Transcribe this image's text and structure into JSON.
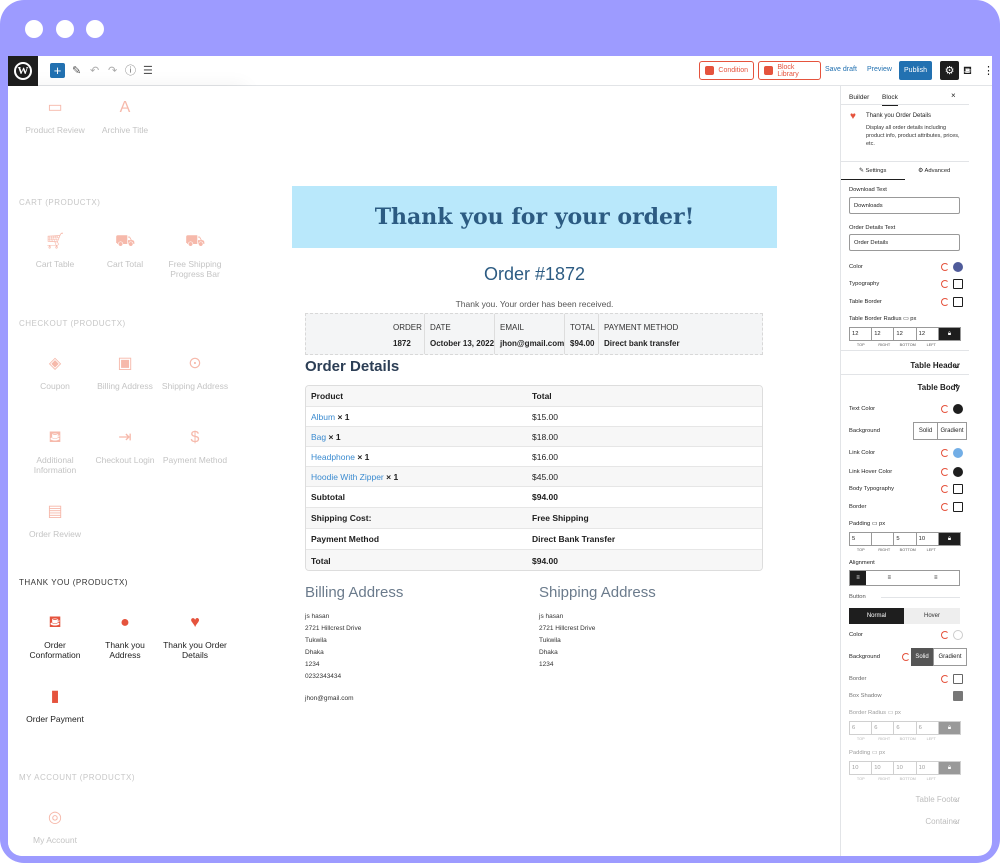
{
  "toolbar": {
    "condition": "Condition",
    "block_library": "Block Library",
    "save_draft": "Save draft",
    "preview": "Preview",
    "publish": "Publish"
  },
  "left": {
    "row0": [
      "Product Review",
      "Archive Title"
    ],
    "cart_heading": "CART (PRODUCTX)",
    "cart": [
      "Cart Table",
      "Cart Total",
      "Free Shipping Progress Bar"
    ],
    "checkout_heading": "CHECKOUT (PRODUCTX)",
    "checkout": [
      "Coupon",
      "Billing Address",
      "Shipping Address",
      "Additional Information",
      "Checkout Login",
      "Payment Method",
      "Order Review"
    ],
    "thankyou_heading": "THANK YOU (PRODUCTX)",
    "thankyou": [
      "Order Conformation",
      "Thank you Address",
      "Thank you Order Details",
      "Order Payment"
    ],
    "account_heading": "MY ACCOUNT (PRODUCTX)",
    "account": [
      "My Account"
    ]
  },
  "canvas": {
    "banner": "Thank you for your order!",
    "order_number": "Order #1872",
    "received": "Thank you. Your order has been received.",
    "summary": [
      {
        "h": "ORDER",
        "v": "1872"
      },
      {
        "h": "DATE",
        "v": "October 13, 2022"
      },
      {
        "h": "EMAIL",
        "v": "jhon@gmail.com"
      },
      {
        "h": "TOTAL",
        "v": "$94.00"
      },
      {
        "h": "PAYMENT METHOD",
        "v": "Direct bank transfer"
      }
    ],
    "details_heading": "Order Details",
    "table_head": [
      "Product",
      "Total"
    ],
    "items": [
      {
        "name": "Album",
        "qty": "× 1",
        "total": "$15.00"
      },
      {
        "name": "Bag",
        "qty": "× 1",
        "total": "$18.00"
      },
      {
        "name": "Headphone",
        "qty": "× 1",
        "total": "$16.00"
      },
      {
        "name": "Hoodie With Zipper",
        "qty": "× 1",
        "total": "$45.00"
      }
    ],
    "totals": [
      {
        "label": "Subtotal",
        "value": "$94.00"
      },
      {
        "label": "Shipping Cost:",
        "value": "Free Shipping"
      },
      {
        "label": "Payment Method",
        "value": "Direct Bank Transfer"
      },
      {
        "label": "Total",
        "value": "$94.00"
      }
    ],
    "billing_heading": "Billing Address",
    "billing": [
      "js hasan",
      "2721 Hillcrest Drive",
      "Tukwila",
      "Dhaka",
      "1234",
      "0232343434",
      "jhon@gmail.com"
    ],
    "shipping_heading": "Shipping Address",
    "shipping": [
      "js hasan",
      "2721 Hillcrest Drive",
      "Tukwila",
      "Dhaka",
      "1234"
    ]
  },
  "sidebar": {
    "tab_builder": "Builder",
    "tab_block": "Block",
    "close": "×",
    "block_title": "Thank you Order Details",
    "block_desc": "Display all order details including product info, product attributes, prices, etc.",
    "tab_settings": "Settings",
    "tab_advanced": "Advanced",
    "download_label": "Download Text",
    "download_value": "Downloads",
    "details_label": "Order Details Text",
    "details_value": "Order Details",
    "color": "Color",
    "typography": "Typography",
    "table_border": "Table Border",
    "radius_label": "Table Border Radius",
    "px": "px",
    "radius_values": [
      "12",
      "12",
      "12",
      "12"
    ],
    "sides": [
      "TOP",
      "RIGHT",
      "BOTTOM",
      "LEFT"
    ],
    "table_header": "Table Header",
    "table_body": "Table Body",
    "text_color": "Text Color",
    "background": "Background",
    "solid": "Solid",
    "gradient": "Gradient",
    "link_color": "Link Color",
    "link_hover": "Link Hover Color",
    "body_typo": "Body Typography",
    "border": "Border",
    "padding": "Padding",
    "padding_values": [
      "5",
      "",
      "5",
      "10"
    ],
    "alignment": "Alignment",
    "button": "Button",
    "normal": "Normal",
    "hover": "Hover",
    "btn_color": "Color",
    "btn_background": "Background",
    "btn_border": "Border",
    "box_shadow": "Box Shadow",
    "btn_radius": "Border Radius",
    "btn_radius_values": [
      "6",
      "6",
      "6",
      "6"
    ],
    "btn_padding": "Padding",
    "btn_padding_values": [
      "10",
      "10",
      "10",
      "10"
    ],
    "table_footer": "Table Footer",
    "container": "Container",
    "accent": "#e5533d",
    "link_blue": "#3b8bd0"
  }
}
